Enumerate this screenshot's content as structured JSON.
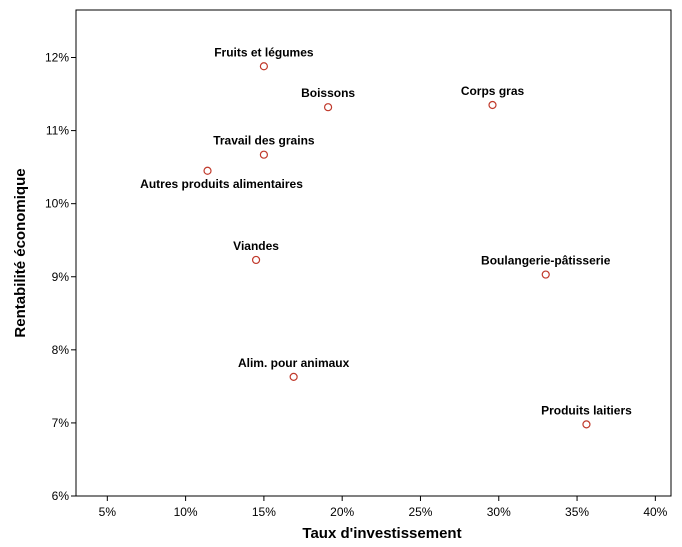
{
  "chart_data": {
    "type": "scatter",
    "title": "",
    "xlabel": "Taux d'investissement",
    "ylabel": "Rentabilité économique",
    "xlim": [
      3,
      41
    ],
    "ylim": [
      6,
      12.65
    ],
    "x_ticks": [
      {
        "value": 5,
        "label": "5%"
      },
      {
        "value": 10,
        "label": "10%"
      },
      {
        "value": 15,
        "label": "15%"
      },
      {
        "value": 20,
        "label": "20%"
      },
      {
        "value": 25,
        "label": "25%"
      },
      {
        "value": 30,
        "label": "30%"
      },
      {
        "value": 35,
        "label": "35%"
      },
      {
        "value": 40,
        "label": "40%"
      }
    ],
    "y_ticks": [
      {
        "value": 6,
        "label": "6%"
      },
      {
        "value": 7,
        "label": "7%"
      },
      {
        "value": 8,
        "label": "8%"
      },
      {
        "value": 9,
        "label": "9%"
      },
      {
        "value": 10,
        "label": "10%"
      },
      {
        "value": 11,
        "label": "11%"
      },
      {
        "value": 12,
        "label": "12%"
      }
    ],
    "grid": false,
    "marker_color": "#c0392b",
    "points": [
      {
        "label": "Fruits et légumes",
        "x": 15.0,
        "y": 11.88
      },
      {
        "label": "Boissons",
        "x": 19.1,
        "y": 11.32
      },
      {
        "label": "Corps gras",
        "x": 29.6,
        "y": 11.35
      },
      {
        "label": "Travail des grains",
        "x": 15.0,
        "y": 10.67
      },
      {
        "label": "Autres produits alimentaires",
        "x": 11.4,
        "y": 10.45
      },
      {
        "label": "Viandes",
        "x": 14.5,
        "y": 9.23
      },
      {
        "label": "Boulangerie-pâtisserie",
        "x": 33.0,
        "y": 9.03
      },
      {
        "label": "Alim. pour animaux",
        "x": 16.9,
        "y": 7.63
      },
      {
        "label": "Produits laitiers",
        "x": 35.6,
        "y": 6.98
      }
    ]
  }
}
